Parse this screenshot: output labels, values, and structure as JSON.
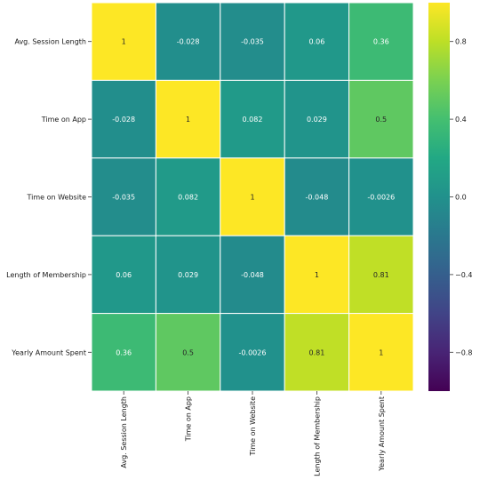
{
  "chart_data": {
    "type": "heatmap",
    "title": "",
    "xlabel": "",
    "ylabel": "",
    "categories": [
      "Avg. Session Length",
      "Time on App",
      "Time on Website",
      "Length of Membership",
      "Yearly Amount Spent"
    ],
    "annotations": [
      [
        "1",
        "-0.028",
        "-0.035",
        "0.06",
        "0.36"
      ],
      [
        "-0.028",
        "1",
        "0.082",
        "0.029",
        "0.5"
      ],
      [
        "-0.035",
        "0.082",
        "1",
        "-0.048",
        "-0.0026"
      ],
      [
        "0.06",
        "0.029",
        "-0.048",
        "1",
        "0.81"
      ],
      [
        "0.36",
        "0.5",
        "-0.0026",
        "0.81",
        "1"
      ]
    ],
    "colormap": "viridis",
    "vmin": -1,
    "vmax": 1,
    "colorbar_ticks": [
      "-0.8",
      "-0.4",
      "0.0",
      "0.4",
      "0.8"
    ],
    "cell_border_color": "#ffffff"
  }
}
